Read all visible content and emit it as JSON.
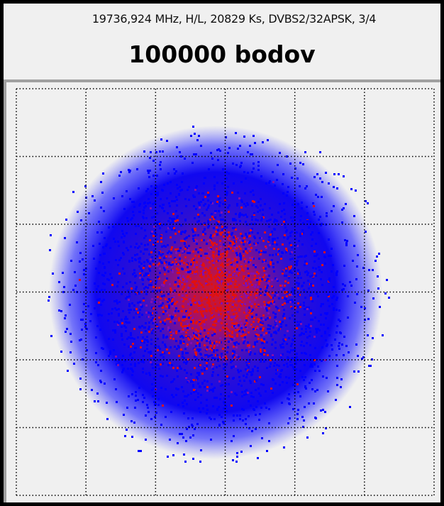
{
  "chart_data": {
    "type": "scatter",
    "title": "100000 bodov",
    "subtitle": "19736,924 MHz, H/L, 20829 Ks, DVBS2/32APSK, 3/4",
    "point_count": 100000,
    "grid": true,
    "grid_style": "dotted",
    "grid_divisions": 6,
    "xlabel": "",
    "ylabel": "",
    "colors": {
      "sparse": "#0000ff",
      "dense": "#e01010",
      "background": "#f0f0f0",
      "grid": "#000000"
    }
  }
}
